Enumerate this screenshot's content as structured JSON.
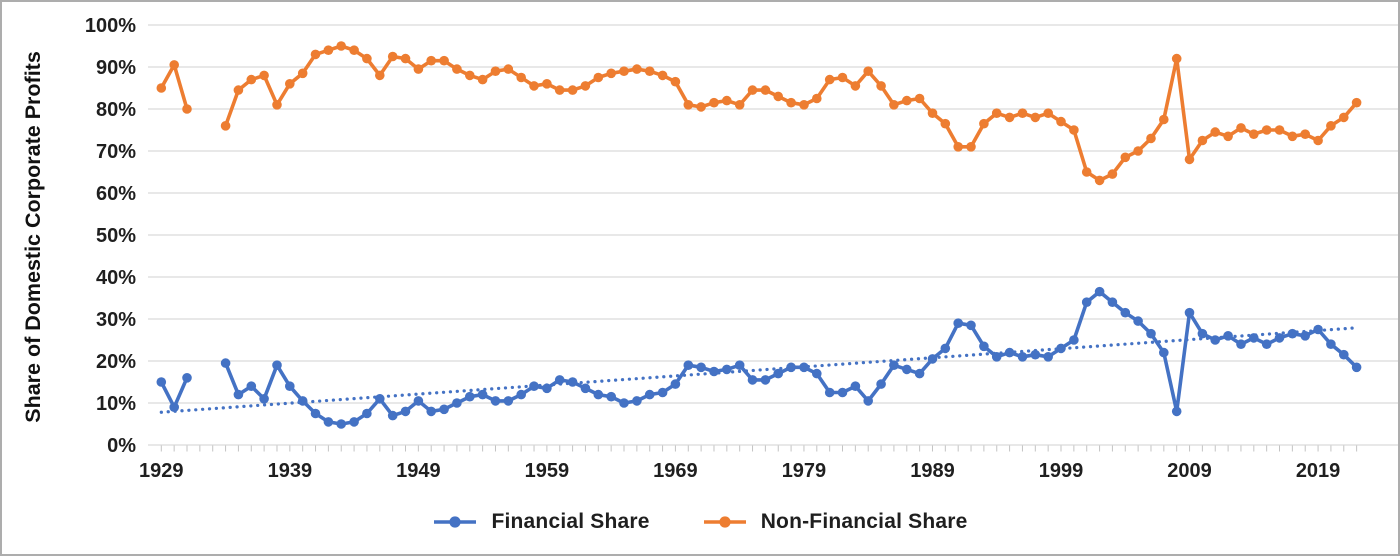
{
  "y_axis": {
    "title": "Share of Domestic Corporate Profits",
    "tick_labels": [
      "100%",
      "90%",
      "80%",
      "70%",
      "60%",
      "50%",
      "40%",
      "30%",
      "20%",
      "10%",
      "0%"
    ]
  },
  "x_axis": {
    "tick_labels": [
      "1929",
      "1939",
      "1949",
      "1959",
      "1969",
      "1979",
      "1989",
      "1999",
      "2009",
      "2019"
    ]
  },
  "legend": {
    "items": [
      {
        "label": "Financial Share",
        "color": "#4472C4"
      },
      {
        "label": "Non-Financial Share",
        "color": "#ED7D31"
      }
    ]
  },
  "colors": {
    "financial": "#4472C4",
    "non_financial": "#ED7D31",
    "gridline": "#d9d9d9",
    "tick_mark": "#c3c3c3",
    "text": "#1f1f1f"
  },
  "chart_data": {
    "type": "line",
    "title": "",
    "xlabel": "",
    "ylabel": "Share of Domestic Corporate Profits",
    "ylim": [
      0,
      100
    ],
    "y_tick_step": 10,
    "grid": "horizontal",
    "legend_position": "bottom",
    "x_tick_years": [
      1929,
      1939,
      1949,
      1959,
      1969,
      1979,
      1989,
      1999,
      2009,
      2019
    ],
    "missing_years": [
      1932,
      1933
    ],
    "years": [
      1929,
      1930,
      1931,
      1934,
      1935,
      1936,
      1937,
      1938,
      1939,
      1940,
      1941,
      1942,
      1943,
      1944,
      1945,
      1946,
      1947,
      1948,
      1949,
      1950,
      1951,
      1952,
      1953,
      1954,
      1955,
      1956,
      1957,
      1958,
      1959,
      1960,
      1961,
      1962,
      1963,
      1964,
      1965,
      1966,
      1967,
      1968,
      1969,
      1970,
      1971,
      1972,
      1973,
      1974,
      1975,
      1976,
      1977,
      1978,
      1979,
      1980,
      1981,
      1982,
      1983,
      1984,
      1985,
      1986,
      1987,
      1988,
      1989,
      1990,
      1991,
      1992,
      1993,
      1994,
      1995,
      1996,
      1997,
      1998,
      1999,
      2000,
      2001,
      2002,
      2003,
      2004,
      2005,
      2006,
      2007,
      2008,
      2009,
      2010,
      2011,
      2012,
      2013,
      2014,
      2015,
      2016,
      2017,
      2018,
      2019,
      2020,
      2021,
      2022
    ],
    "series": [
      {
        "name": "Financial Share",
        "color": "#4472C4",
        "marker": "circle",
        "values": [
          15,
          9,
          16,
          19.5,
          12,
          14,
          11,
          19,
          14,
          10.5,
          7.5,
          5.5,
          5,
          5.5,
          7.5,
          11,
          7,
          8,
          10.5,
          8,
          8.5,
          10,
          11.5,
          12,
          10.5,
          10.5,
          12,
          14,
          13.5,
          15.5,
          15,
          13.5,
          12,
          11.5,
          10,
          10.5,
          12,
          12.5,
          14.5,
          19,
          18.5,
          17.5,
          18,
          19,
          15.5,
          15.5,
          17,
          18.5,
          18.5,
          17,
          12.5,
          12.5,
          14,
          10.5,
          14.5,
          19,
          18,
          17,
          20.5,
          23,
          29,
          28.5,
          23.5,
          21,
          22,
          21,
          21.5,
          21,
          23,
          25,
          34,
          36.5,
          34,
          31.5,
          29.5,
          26.5,
          22,
          8,
          31.5,
          26.5,
          25,
          26,
          24,
          25.5,
          24,
          25.5,
          26.5,
          26,
          27.5,
          24,
          21.5,
          18.5
        ]
      },
      {
        "name": "Non-Financial Share",
        "color": "#ED7D31",
        "marker": "circle",
        "values": [
          85,
          90.5,
          80,
          76,
          84.5,
          87,
          88,
          81,
          86,
          88.5,
          93,
          94,
          95,
          94,
          92,
          88,
          92.5,
          92,
          89.5,
          91.5,
          91.5,
          89.5,
          88,
          87,
          89,
          89.5,
          87.5,
          85.5,
          86,
          84.5,
          84.5,
          85.5,
          87.5,
          88.5,
          89,
          89.5,
          89,
          88,
          86.5,
          81,
          80.5,
          81.5,
          82,
          81,
          84.5,
          84.5,
          83,
          81.5,
          81,
          82.5,
          87,
          87.5,
          85.5,
          89,
          85.5,
          81,
          82,
          82.5,
          79,
          76.5,
          71,
          71,
          76.5,
          79,
          78,
          79,
          78,
          79,
          77,
          75,
          65,
          63,
          64.5,
          68.5,
          70,
          73,
          77.5,
          92,
          68,
          72.5,
          74.5,
          73.5,
          75.5,
          74,
          75,
          75,
          73.5,
          74,
          72.5,
          76,
          78,
          81.5
        ]
      }
    ],
    "trendline": {
      "for": "Financial Share",
      "style": "dotted",
      "color": "#4472C4",
      "start": {
        "year": 1929,
        "value": 7.8
      },
      "end": {
        "year": 2022,
        "value": 27.9
      }
    }
  }
}
